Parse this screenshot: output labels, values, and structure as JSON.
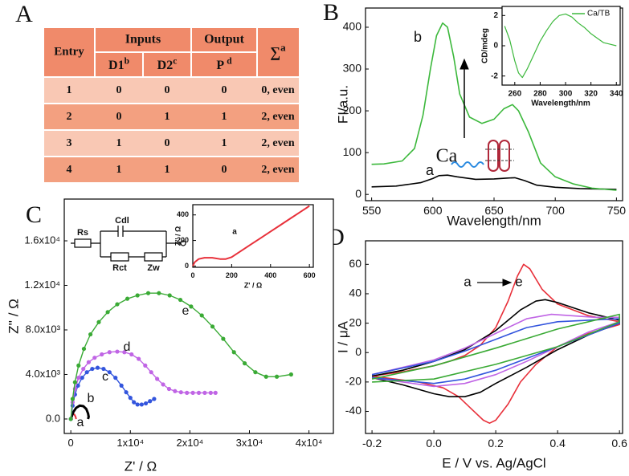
{
  "panel_labels": [
    "A",
    "B",
    "C",
    "D"
  ],
  "table": {
    "header_top": [
      "Entry",
      "Inputs",
      "Output"
    ],
    "sum_header": {
      "text": "∑",
      "sup": "a"
    },
    "header_sub": [
      {
        "text": "D1",
        "sup": "b"
      },
      {
        "text": "D2",
        "sup": "c"
      },
      {
        "text": "P ",
        "sup": "d"
      }
    ],
    "rows": [
      [
        1,
        0,
        0,
        0,
        "0, even"
      ],
      [
        2,
        0,
        1,
        1,
        "2, even"
      ],
      [
        3,
        1,
        0,
        1,
        "2, even"
      ],
      [
        4,
        1,
        1,
        0,
        "2, even"
      ]
    ]
  },
  "chart_data": [
    {
      "type": "line",
      "xlabel": "Wavelength/nm",
      "ylabel": "FI/a.u.",
      "xlim": [
        545,
        755
      ],
      "ylim": [
        -15,
        446
      ],
      "xticks": [
        550,
        600,
        650,
        700,
        750
      ],
      "yticks": [
        0,
        100,
        200,
        300,
        400
      ],
      "series": [
        {
          "color": "#000000",
          "x": [
            550,
            570,
            590,
            600,
            605,
            612,
            620,
            635,
            650,
            660,
            667,
            675,
            685,
            700,
            720,
            750
          ],
          "values": [
            18,
            20,
            28,
            38,
            45,
            46,
            42,
            36,
            37,
            39,
            40,
            33,
            22,
            17,
            14,
            12
          ]
        },
        {
          "color": "#3cb83c",
          "x": [
            550,
            560,
            575,
            585,
            592,
            598,
            603,
            608,
            612,
            617,
            622,
            630,
            640,
            650,
            658,
            665,
            670,
            678,
            688,
            700,
            715,
            730,
            750
          ],
          "values": [
            72,
            73,
            80,
            110,
            190,
            300,
            380,
            410,
            400,
            330,
            240,
            185,
            170,
            180,
            205,
            215,
            200,
            150,
            75,
            42,
            25,
            15,
            10
          ]
        }
      ],
      "annotations": [
        "b",
        "a",
        "Ca"
      ]
    },
    {
      "type": "line",
      "xlabel": "Wavelength/nm",
      "ylabel": "CD/mdeg",
      "xlim": [
        250,
        343
      ],
      "ylim": [
        -2.6,
        2.6
      ],
      "xticks": [
        260,
        280,
        300,
        320,
        340
      ],
      "yticks": [
        -2,
        0,
        2
      ],
      "legend": "upper right",
      "series": [
        {
          "name": "Ca/TB",
          "color": "#3cb83c",
          "x": [
            252,
            256,
            260,
            263,
            266,
            270,
            275,
            280,
            285,
            290,
            295,
            300,
            305,
            310,
            315,
            320,
            325,
            330,
            335,
            340
          ],
          "values": [
            1.3,
            0.4,
            -1.0,
            -1.8,
            -2.1,
            -1.5,
            -0.6,
            0.3,
            1.0,
            1.6,
            2.0,
            2.1,
            1.9,
            1.5,
            1.2,
            0.8,
            0.5,
            0.2,
            0.1,
            0.0
          ]
        }
      ]
    },
    {
      "type": "line",
      "xlabel": "Z' / Ω",
      "ylabel": "Z'' / Ω",
      "xlim": [
        -1100,
        44100
      ],
      "ylim": [
        -1300,
        19750
      ],
      "xticks": [
        0,
        {
          "value": 10000,
          "label": "1x10⁴"
        },
        {
          "value": 20000,
          "label": "2x10⁴"
        },
        {
          "value": 30000,
          "label": "3x10⁴"
        },
        {
          "value": 40000,
          "label": "4x10⁴"
        }
      ],
      "yticks": [
        {
          "value": 0,
          "label": "0.0"
        },
        {
          "value": 4000,
          "label": "4.0x10³"
        },
        {
          "value": 8000,
          "label": "8.0x10³"
        },
        {
          "value": 12000,
          "label": "1.2x10⁴"
        },
        {
          "value": 16000,
          "label": "1.6x10⁴"
        }
      ],
      "series": [
        {
          "color": "#e8303a",
          "width": 2,
          "x": [
            0,
            200,
            400,
            600,
            800,
            900
          ],
          "values": [
            0,
            300,
            450,
            400,
            200,
            0
          ]
        },
        {
          "color": "#000000",
          "width": 3,
          "x": [
            0,
            400,
            900,
            1500,
            2100,
            2600,
            2900,
            3000,
            2900
          ],
          "values": [
            0,
            600,
            1000,
            1200,
            1150,
            900,
            500,
            200,
            0
          ]
        },
        {
          "color": "#3355dd",
          "markers": true,
          "x": [
            0,
            300,
            700,
            1200,
            1900,
            2700,
            3600,
            4500,
            5500,
            6500,
            7500,
            8500,
            9300,
            10000,
            10600,
            11200,
            11900,
            12600,
            13300,
            14000
          ],
          "values": [
            0,
            1200,
            2200,
            3000,
            3700,
            4200,
            4500,
            4600,
            4500,
            4200,
            3700,
            3000,
            2400,
            1900,
            1500,
            1300,
            1300,
            1400,
            1600,
            1800
          ]
        },
        {
          "color": "#c065e5",
          "markers": true,
          "x": [
            0,
            300,
            700,
            1300,
            2100,
            3000,
            4000,
            5200,
            6500,
            7800,
            9000,
            10200,
            11400,
            12500,
            13500,
            14500,
            15500,
            16500,
            17500,
            18500,
            19500,
            20500,
            21500,
            22500,
            23500,
            24300
          ],
          "values": [
            0,
            1500,
            2700,
            3700,
            4500,
            5100,
            5500,
            5800,
            6000,
            6050,
            6000,
            5800,
            5400,
            4800,
            4200,
            3600,
            3100,
            2700,
            2500,
            2400,
            2350,
            2350,
            2350,
            2350,
            2350,
            2350
          ]
        },
        {
          "color": "#3aaa35",
          "markers": true,
          "x": [
            0,
            300,
            700,
            1300,
            2200,
            3300,
            4700,
            6200,
            7800,
            9500,
            11200,
            13000,
            14800,
            16600,
            18400,
            20200,
            22000,
            23800,
            25600,
            27400,
            29200,
            31000,
            32800,
            34600,
            37000
          ],
          "values": [
            0,
            1800,
            3300,
            4800,
            6300,
            7600,
            8700,
            9600,
            10300,
            10800,
            11100,
            11300,
            11300,
            11100,
            10700,
            10100,
            9300,
            8300,
            7200,
            6000,
            5000,
            4200,
            3800,
            3800,
            4000
          ]
        }
      ],
      "annotations": [
        "a",
        "b",
        "c",
        "d",
        "e"
      ],
      "circuit_labels": [
        "Rs",
        "Cdl",
        "Rct",
        "Zw"
      ]
    },
    {
      "type": "line",
      "xlabel": "Z' / Ω",
      "ylabel": "Z'' / Ω",
      "xlim": [
        0,
        620
      ],
      "ylim": [
        -10,
        480
      ],
      "xticks": [
        0,
        200,
        400,
        600
      ],
      "yticks": [
        0,
        200,
        400
      ],
      "series": [
        {
          "color": "#e8303a",
          "width": 2,
          "x": [
            0,
            10,
            30,
            60,
            100,
            140,
            170,
            200,
            250,
            300,
            350,
            400,
            450,
            500,
            550,
            600
          ],
          "values": [
            0,
            30,
            55,
            65,
            65,
            55,
            55,
            70,
            120,
            170,
            220,
            270,
            320,
            370,
            420,
            470
          ]
        }
      ],
      "annotations": [
        "a"
      ]
    },
    {
      "type": "line",
      "xlabel": "E / V  vs. Ag/AgCl",
      "ylabel": "I / μA",
      "xlim": [
        -0.221,
        0.61
      ],
      "ylim": [
        -55,
        76
      ],
      "xticks": [
        -0.2,
        {
          "value": 0,
          "label": "0.0"
        },
        0.2,
        0.4,
        0.6
      ],
      "yticks": [
        -40,
        -20,
        0,
        20,
        40,
        60
      ],
      "series": [
        {
          "color": "#e8303a",
          "x": [
            -0.2,
            -0.1,
            0,
            0.05,
            0.1,
            0.15,
            0.2,
            0.24,
            0.27,
            0.29,
            0.31,
            0.35,
            0.4,
            0.5,
            0.6,
            0.6,
            0.5,
            0.4,
            0.33,
            0.28,
            0.24,
            0.2,
            0.18,
            0.16,
            0.12,
            0.08,
            0.03,
            -0.05,
            -0.2
          ],
          "values": [
            -16,
            -13,
            -9,
            -6,
            -2,
            5,
            17,
            35,
            52,
            60,
            57,
            43,
            33,
            25,
            21,
            19,
            13,
            4,
            -8,
            -20,
            -35,
            -46,
            -48,
            -46,
            -38,
            -30,
            -24,
            -20,
            -16
          ]
        },
        {
          "color": "#000000",
          "x": [
            -0.2,
            -0.1,
            0,
            0.1,
            0.2,
            0.28,
            0.33,
            0.36,
            0.4,
            0.5,
            0.6,
            0.6,
            0.5,
            0.4,
            0.3,
            0.2,
            0.15,
            0.1,
            0.05,
            0,
            -0.1,
            -0.2
          ],
          "values": [
            -16,
            -12,
            -6,
            2,
            15,
            29,
            35,
            36,
            34,
            27,
            22,
            20,
            12,
            2,
            -10,
            -21,
            -27,
            -30,
            -30,
            -28,
            -22,
            -17
          ]
        },
        {
          "color": "#c065e5",
          "x": [
            -0.2,
            0,
            0.1,
            0.2,
            0.3,
            0.38,
            0.45,
            0.52,
            0.6,
            0.6,
            0.5,
            0.4,
            0.3,
            0.2,
            0.1,
            0,
            -0.1,
            -0.2
          ],
          "values": [
            -15,
            -5,
            3,
            13,
            23,
            26,
            25,
            24,
            24,
            21,
            14,
            4,
            -6,
            -15,
            -21,
            -23,
            -20,
            -17
          ]
        },
        {
          "color": "#3355dd",
          "x": [
            -0.2,
            0,
            0.1,
            0.2,
            0.3,
            0.4,
            0.5,
            0.6,
            0.6,
            0.5,
            0.4,
            0.3,
            0.2,
            0.1,
            0,
            -0.2
          ],
          "values": [
            -15,
            -6,
            1,
            9,
            17,
            21,
            22,
            23,
            20,
            12,
            4,
            -4,
            -12,
            -18,
            -21,
            -17
          ]
        },
        {
          "color": "#3aaa35",
          "x": [
            -0.2,
            0,
            0.2,
            0.4,
            0.5,
            0.6,
            0.6,
            0.4,
            0.2,
            0,
            -0.2
          ],
          "values": [
            -18,
            -9,
            3,
            16,
            21,
            26,
            21,
            4,
            -8,
            -18,
            -20
          ]
        }
      ],
      "annotations": [
        "a",
        "e"
      ]
    }
  ]
}
